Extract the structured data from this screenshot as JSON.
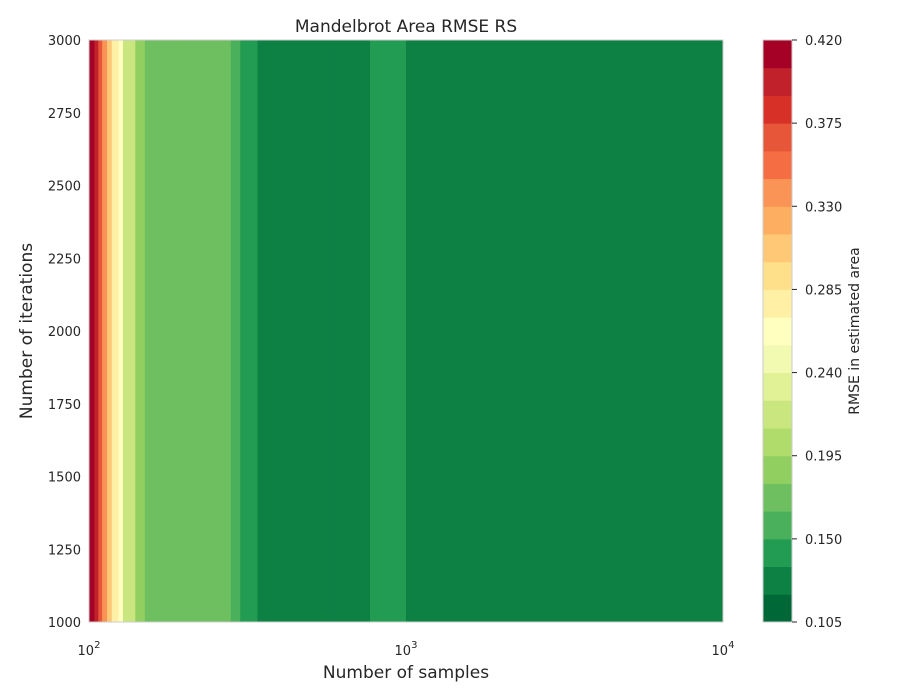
{
  "chart_data": {
    "type": "heatmap",
    "subtype": "filled-contour",
    "title": "Mandelbrot Area RMSE RS",
    "xlabel": "Number of samples",
    "ylabel": "Number of iterations",
    "x_scale": "log",
    "xlim": [
      100,
      10000
    ],
    "ylim": [
      1000,
      3000
    ],
    "x_ticks": [
      {
        "base": "10",
        "exp": "2"
      },
      {
        "base": "10",
        "exp": "3"
      },
      {
        "base": "10",
        "exp": "4"
      }
    ],
    "y_ticks": [
      "1000",
      "1250",
      "1500",
      "1750",
      "2000",
      "2250",
      "2500",
      "2750",
      "3000"
    ],
    "colormap": "RdYlGn_r",
    "grid": false,
    "colorbar": {
      "label": "RMSE in estimated area",
      "range": [
        0.105,
        0.42
      ],
      "levels": 21,
      "ticks": [
        "0.105",
        "0.150",
        "0.195",
        "0.240",
        "0.285",
        "0.330",
        "0.375",
        "0.420"
      ],
      "colors": [
        "#006837",
        "#0d8044",
        "#229c52",
        "#4bb05c",
        "#6ebf5f",
        "#91cf60",
        "#afdc6b",
        "#c9e77e",
        "#e0f196",
        "#f2f9b1",
        "#ffffbf",
        "#fff0a6",
        "#fee08b",
        "#fec877",
        "#fdae61",
        "#f99356",
        "#f46d43",
        "#e75638",
        "#d73027",
        "#c1212a",
        "#a50026"
      ]
    },
    "x_profile": [
      {
        "samples": 100,
        "rmse": 0.42
      },
      {
        "samples": 104,
        "rmse": 0.4
      },
      {
        "samples": 107,
        "rmse": 0.36
      },
      {
        "samples": 110,
        "rmse": 0.33
      },
      {
        "samples": 114,
        "rmse": 0.3
      },
      {
        "samples": 118,
        "rmse": 0.28
      },
      {
        "samples": 124,
        "rmse": 0.26
      },
      {
        "samples": 128,
        "rmse": 0.22
      },
      {
        "samples": 140,
        "rmse": 0.19
      },
      {
        "samples": 150,
        "rmse": 0.17
      },
      {
        "samples": 180,
        "rmse": 0.17
      },
      {
        "samples": 190,
        "rmse": 0.17
      },
      {
        "samples": 220,
        "rmse": 0.165
      },
      {
        "samples": 280,
        "rmse": 0.16
      },
      {
        "samples": 300,
        "rmse": 0.145
      },
      {
        "samples": 340,
        "rmse": 0.125
      },
      {
        "samples": 600,
        "rmse": 0.13
      },
      {
        "samples": 770,
        "rmse": 0.135
      },
      {
        "samples": 1000,
        "rmse": 0.12
      },
      {
        "samples": 10000,
        "rmse": 0.11
      }
    ]
  }
}
